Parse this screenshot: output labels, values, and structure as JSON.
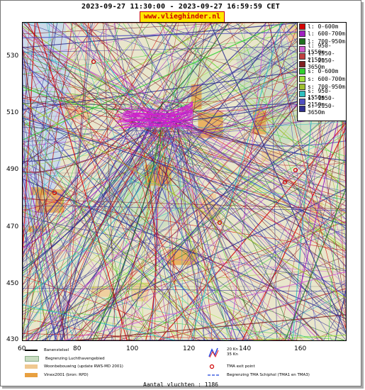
{
  "header": {
    "date_range": "2023-09-27 11:30:00 - 2023-09-27 16:59:59 CET",
    "site": "www.vlieghinder.nl"
  },
  "axes": {
    "y_ticks": [
      "530",
      "510",
      "490",
      "470",
      "450",
      "430"
    ],
    "x_ticks": [
      "60",
      "80",
      "100",
      "120",
      "140",
      "160"
    ]
  },
  "legend": [
    {
      "label": "l: 0-600m",
      "color": "#d40000"
    },
    {
      "label": "l: 600-700m",
      "color": "#a020c0"
    },
    {
      "label": "l: 700-950m",
      "color": "#207020"
    },
    {
      "label": "l: 950-1550m",
      "color": "#d060d0"
    },
    {
      "label": "l: 1550-2150m",
      "color": "#c04040"
    },
    {
      "label": "l: 2150-3650m",
      "color": "#802020"
    },
    {
      "label": "s: 0-600m",
      "color": "#30d030"
    },
    {
      "label": "s: 600-700m",
      "color": "#a0e040"
    },
    {
      "label": "s: 700-950m",
      "color": "#a0c030"
    },
    {
      "label": "s: 950-1550m",
      "color": "#30c0c0"
    },
    {
      "label": "s: 1550-2150m",
      "color": "#5050c0"
    },
    {
      "label": "s: 2150-3650m",
      "color": "#303090"
    }
  ],
  "map_legend": {
    "runway": "Banenstelsel",
    "airspace": "Begrenzing Luchthavengebied",
    "housing": "Woonbebouwing (update RWS-MD 2001)",
    "vinex": "Vinex2001 (bron: RPD)",
    "wind1": "20 Kn",
    "wind2": "35 Kn",
    "tma_exit": "TMA exit point",
    "tma_border": "Begrenzing TMA Schiphol  (TMA1 en TMA3)"
  },
  "footer": {
    "count": "Aantal vluchten : 1186"
  }
}
